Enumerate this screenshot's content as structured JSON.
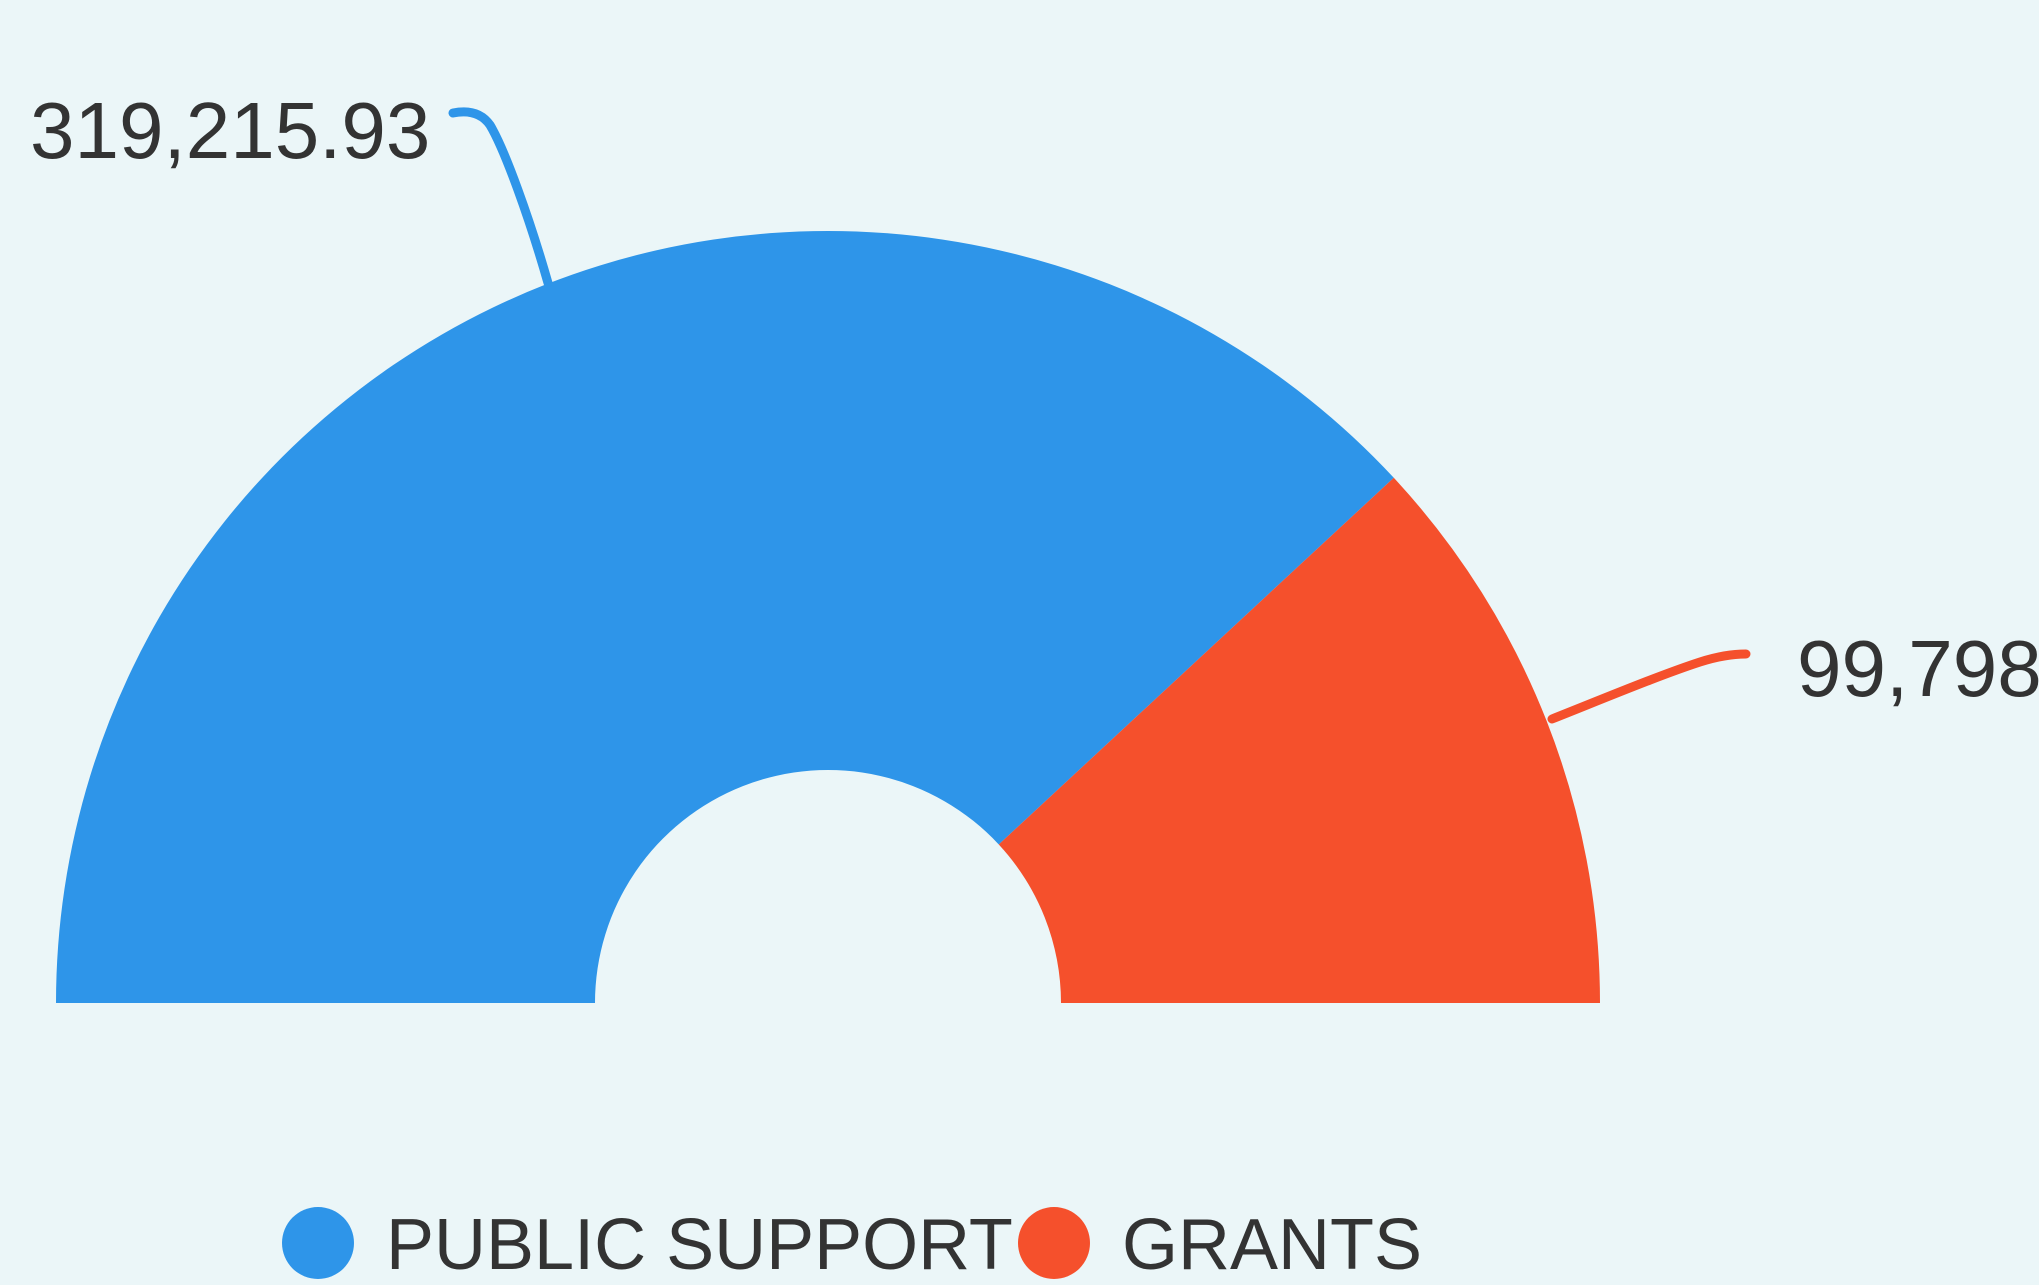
{
  "chart_data": {
    "type": "pie",
    "variant": "semi-donut",
    "title": "",
    "slices": [
      {
        "name": "PUBLIC SUPPORT",
        "value": 319215.93,
        "label": "319,215.93",
        "color": "#2e95e9"
      },
      {
        "name": "GRANTS",
        "value": 99798,
        "label": "99,798.",
        "color": "#f5502c"
      }
    ],
    "legend": {
      "placement": "bottom"
    },
    "background": "#ebf6f8"
  }
}
